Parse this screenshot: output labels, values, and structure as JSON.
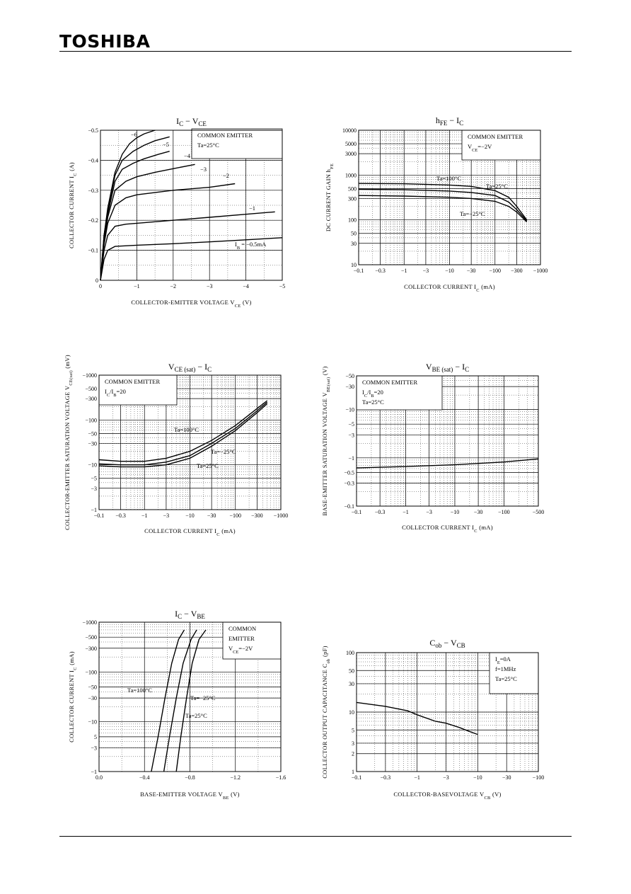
{
  "brand": "TOSHIBA",
  "chart_data": [
    {
      "id": "ic-vce",
      "type": "line",
      "title_main": "I",
      "title_sub1": "C",
      "title_mid": " − V",
      "title_sub2": "CE",
      "xscale": "linear",
      "yscale": "linear",
      "xlim": [
        0,
        -5
      ],
      "ylim": [
        0,
        -0.5
      ],
      "xticks": [
        0,
        -1,
        -2,
        -3,
        -4,
        -5
      ],
      "xtick_labels": [
        "0",
        "−1",
        "−2",
        "−3",
        "−4",
        "−5"
      ],
      "yticks": [
        0,
        -0.1,
        -0.2,
        -0.3,
        -0.4,
        -0.5
      ],
      "ytick_labels": [
        "0",
        "−0.1",
        "−0.2",
        "−0.3",
        "−0.4",
        "−0.5"
      ],
      "xlabel": "COLLECTOR-EMITTER VOLTAGE   V_CE   (V)",
      "ylabel": "COLLECTOR CURRENT   I_C   (A)",
      "legend_lines": [
        "COMMON EMITTER",
        "Ta=25°C"
      ],
      "legend_position": "top-right",
      "grid": true,
      "series": [
        {
          "name": "I_B = −0.5mA",
          "x": [
            0,
            -0.1,
            -0.2,
            -0.4,
            -1,
            -2,
            -3,
            -4,
            -5
          ],
          "y": [
            0,
            -0.07,
            -0.1,
            -0.113,
            -0.117,
            -0.122,
            -0.128,
            -0.135,
            -0.142
          ]
        },
        {
          "name": "−1",
          "x": [
            0,
            -0.1,
            -0.2,
            -0.4,
            -0.7,
            -1,
            -2,
            -3,
            -4,
            -4.8
          ],
          "y": [
            0,
            -0.1,
            -0.15,
            -0.18,
            -0.187,
            -0.19,
            -0.2,
            -0.21,
            -0.22,
            -0.228
          ]
        },
        {
          "name": "−2",
          "x": [
            0,
            -0.1,
            -0.2,
            -0.4,
            -0.7,
            -1,
            -2,
            -3,
            -3.7
          ],
          "y": [
            0,
            -0.12,
            -0.19,
            -0.25,
            -0.275,
            -0.285,
            -0.3,
            -0.31,
            -0.322
          ]
        },
        {
          "name": "−3",
          "x": [
            0,
            -0.1,
            -0.2,
            -0.4,
            -0.7,
            -1,
            -1.5,
            -2,
            -2.6
          ],
          "y": [
            0,
            -0.13,
            -0.21,
            -0.3,
            -0.33,
            -0.345,
            -0.36,
            -0.372,
            -0.386
          ]
        },
        {
          "name": "−4",
          "x": [
            0,
            -0.1,
            -0.2,
            -0.4,
            -0.6,
            -0.9,
            -1.2,
            -1.6,
            -1.9
          ],
          "y": [
            0,
            -0.14,
            -0.22,
            -0.33,
            -0.37,
            -0.39,
            -0.405,
            -0.42,
            -0.43
          ]
        },
        {
          "name": "−5",
          "x": [
            0,
            -0.1,
            -0.2,
            -0.4,
            -0.6,
            -0.9,
            -1.2,
            -1.5,
            -1.9
          ],
          "y": [
            0,
            -0.15,
            -0.23,
            -0.35,
            -0.4,
            -0.43,
            -0.45,
            -0.465,
            -0.478
          ]
        },
        {
          "name": "−6",
          "x": [
            0,
            -0.1,
            -0.2,
            -0.4,
            -0.6,
            -0.8,
            -1.0,
            -1.2,
            -1.5
          ],
          "y": [
            0,
            -0.15,
            -0.24,
            -0.36,
            -0.42,
            -0.455,
            -0.475,
            -0.488,
            -0.5
          ]
        }
      ]
    },
    {
      "id": "hfe-ic",
      "type": "line",
      "title_main": "h",
      "title_sub1": "FE",
      "title_mid": " − I",
      "title_sub2": "C",
      "xscale": "log",
      "yscale": "log",
      "xlim": [
        0.1,
        1000
      ],
      "ylim": [
        10,
        10000
      ],
      "xticks": [
        0.1,
        0.3,
        1,
        3,
        10,
        30,
        100,
        300,
        1000
      ],
      "xtick_labels": [
        "−0.1",
        "−0.3",
        "−1",
        "−3",
        "−10",
        "−30",
        "−100",
        "−300",
        "−1000"
      ],
      "yticks": [
        10,
        30,
        50,
        100,
        300,
        500,
        1000,
        3000,
        5000,
        10000
      ],
      "ytick_labels": [
        "10",
        "30",
        "50",
        "100",
        "300",
        "500",
        "1000",
        "3000",
        "5000",
        "10000"
      ],
      "xlabel": "COLLECTOR CURRENT   I_C   (mA)",
      "ylabel": "DC CURRENT GAIN   h_FE",
      "legend_lines": [
        "COMMON EMITTER",
        "V_CE=−2V"
      ],
      "legend_position": "top-right",
      "grid": true,
      "series": [
        {
          "name": "Ta=100°C",
          "x": [
            0.1,
            1,
            10,
            30,
            100,
            200,
            300,
            500
          ],
          "y": [
            650,
            640,
            600,
            560,
            450,
            320,
            200,
            100
          ]
        },
        {
          "name": "Ta=25°C",
          "x": [
            0.1,
            1,
            10,
            30,
            100,
            200,
            300,
            500
          ],
          "y": [
            480,
            470,
            440,
            410,
            350,
            250,
            170,
            95
          ]
        },
        {
          "name": "Ta=−25°C",
          "x": [
            0.1,
            1,
            10,
            30,
            100,
            200,
            300,
            500
          ],
          "y": [
            350,
            340,
            320,
            300,
            260,
            200,
            150,
            90
          ]
        }
      ]
    },
    {
      "id": "vcesat-ic",
      "type": "line",
      "title_main": "V",
      "title_sub1": "CE (sat)",
      "title_mid": " − I",
      "title_sub2": "C",
      "xscale": "log",
      "yscale": "log",
      "xlim": [
        0.1,
        1000
      ],
      "ylim": [
        1,
        1000
      ],
      "xticks": [
        0.1,
        0.3,
        1,
        3,
        10,
        30,
        100,
        300,
        1000
      ],
      "xtick_labels": [
        "−0.1",
        "−0.3",
        "−1",
        "−3",
        "−10",
        "−30",
        "−100",
        "−300",
        "−1000"
      ],
      "yticks": [
        1,
        3,
        5,
        10,
        30,
        50,
        100,
        300,
        500,
        1000
      ],
      "ytick_labels": [
        "−1",
        "−3",
        "−5",
        "−10",
        "−30",
        "−50",
        "−100",
        "−300",
        "−500",
        "−1000"
      ],
      "xlabel": "COLLECTOR CURRENT   I_C   (mA)",
      "ylabel": "COLLECTOR-EMITTER SATURATION VOLTAGE   V_CE(sat)   (mV)",
      "legend_lines": [
        "COMMON EMITTER",
        "I_C/I_B=20"
      ],
      "legend_position": "top-left",
      "grid": true,
      "series": [
        {
          "name": "Ta=100°C",
          "x": [
            0.1,
            0.3,
            1,
            3,
            10,
            30,
            100,
            300,
            500
          ],
          "y": [
            13,
            12,
            12,
            14,
            20,
            35,
            75,
            180,
            270
          ]
        },
        {
          "name": "Ta=−25°C",
          "x": [
            0.1,
            0.3,
            1,
            3,
            10,
            30,
            100,
            300,
            500
          ],
          "y": [
            10.5,
            10,
            10,
            11.5,
            16,
            30,
            65,
            160,
            250
          ]
        },
        {
          "name": "Ta=25°C",
          "x": [
            0.1,
            0.3,
            1,
            3,
            10,
            30,
            100,
            300,
            500
          ],
          "y": [
            9.5,
            9,
            9,
            10,
            14,
            26,
            58,
            145,
            230
          ]
        }
      ]
    },
    {
      "id": "vbesat-ic",
      "type": "line",
      "title_main": "V",
      "title_sub1": "BE (sat)",
      "title_mid": " − I",
      "title_sub2": "C",
      "xscale": "log",
      "yscale": "log",
      "xlim": [
        0.1,
        500
      ],
      "ylim": [
        0.1,
        50
      ],
      "xticks": [
        0.1,
        0.3,
        1,
        3,
        10,
        30,
        100,
        500
      ],
      "xtick_labels": [
        "−0.1",
        "−0.3",
        "−1",
        "−3",
        "−10",
        "−30",
        "−100",
        "−500"
      ],
      "yticks": [
        0.1,
        0.3,
        0.5,
        1,
        3,
        5,
        10,
        30,
        50
      ],
      "ytick_labels": [
        "−0.1",
        "−0.3",
        "−0.5",
        "−1",
        "−3",
        "−5",
        "−10",
        "−30",
        "−50"
      ],
      "xlabel": "COLLECTOR CURRENT   I_C   (mA)",
      "ylabel": "BASE-EMITTER SATURATION VOLTAGE   V_BE(sat)   (V)",
      "legend_lines": [
        "COMMON EMITTER",
        "I_C/I_B=20",
        "Ta=25°C"
      ],
      "legend_position": "top-left",
      "grid": true,
      "series": [
        {
          "name": "",
          "x": [
            0.1,
            1,
            10,
            100,
            500
          ],
          "y": [
            0.62,
            0.66,
            0.72,
            0.82,
            0.95
          ]
        }
      ]
    },
    {
      "id": "ic-vbe",
      "type": "line",
      "title_main": "I",
      "title_sub1": "C",
      "title_mid": " − V",
      "title_sub2": "BE",
      "xscale": "linear",
      "yscale": "log",
      "xlim": [
        0,
        -1.6
      ],
      "ylim": [
        1,
        1000
      ],
      "xticks": [
        0,
        -0.4,
        -0.8,
        -1.2,
        -1.6
      ],
      "xtick_labels": [
        "0.0",
        "−0.4",
        "−0.8",
        "−1.2",
        "−1.6"
      ],
      "yticks": [
        1,
        3,
        5,
        10,
        30,
        50,
        100,
        300,
        500,
        1000
      ],
      "ytick_labels": [
        "−1",
        "−3",
        "5",
        "−10",
        "−30",
        "−50",
        "−100",
        "−300",
        "−500",
        "−1000"
      ],
      "xlabel": "BASE-EMITTER VOLTAGE   V_BE   (V)",
      "ylabel": "COLLECTOR CURRENT   I_C   (mA)",
      "legend_lines": [
        "COMMON",
        "EMITTER",
        "V_CE=−2V"
      ],
      "legend_position": "top-right",
      "grid": true,
      "series": [
        {
          "name": "Ta=100°C",
          "x": [
            -0.46,
            -0.52,
            -0.58,
            -0.64,
            -0.7,
            -0.75
          ],
          "y": [
            1,
            5,
            30,
            150,
            450,
            700
          ]
        },
        {
          "name": "Ta=−25°C",
          "x": [
            -0.57,
            -0.62,
            -0.68,
            -0.74,
            -0.81,
            -0.86
          ],
          "y": [
            1,
            5,
            30,
            150,
            450,
            700
          ]
        },
        {
          "name": "Ta=25°C",
          "x": [
            -0.68,
            -0.72,
            -0.77,
            -0.82,
            -0.88,
            -0.94
          ],
          "y": [
            1,
            5,
            30,
            150,
            450,
            700
          ]
        }
      ]
    },
    {
      "id": "cob-vcb",
      "type": "line",
      "title_main": "C",
      "title_sub1": "ob",
      "title_mid": " − V",
      "title_sub2": "CB",
      "xscale": "log",
      "yscale": "log",
      "xlim": [
        0.1,
        100
      ],
      "ylim": [
        1,
        100
      ],
      "xticks": [
        0.1,
        0.3,
        1,
        3,
        10,
        30,
        100
      ],
      "xtick_labels": [
        "−0.1",
        "−0.3",
        "−1",
        "−3",
        "−10",
        "−30",
        "−100"
      ],
      "yticks": [
        1,
        2,
        3,
        5,
        10,
        30,
        50,
        100
      ],
      "ytick_labels": [
        "1",
        "2",
        "3",
        "5",
        "10",
        "30",
        "50",
        "100"
      ],
      "xlabel": "COLLECTOR-BASEVOLTAGE   V_CB   (V)",
      "ylabel": "COLLECTOR OUTPUT CAPACITANCE   C_ob   (pF)",
      "legend_lines": [
        "I_E=0A",
        "f=1MHz",
        "Ta=25°C"
      ],
      "legend_position": "top-right",
      "grid": true,
      "series": [
        {
          "name": "",
          "x": [
            0.1,
            0.3,
            0.7,
            1,
            2,
            3,
            5,
            7,
            10
          ],
          "y": [
            14.5,
            12.5,
            10.5,
            9,
            7,
            6.5,
            5.5,
            4.8,
            4.2
          ]
        }
      ]
    }
  ]
}
